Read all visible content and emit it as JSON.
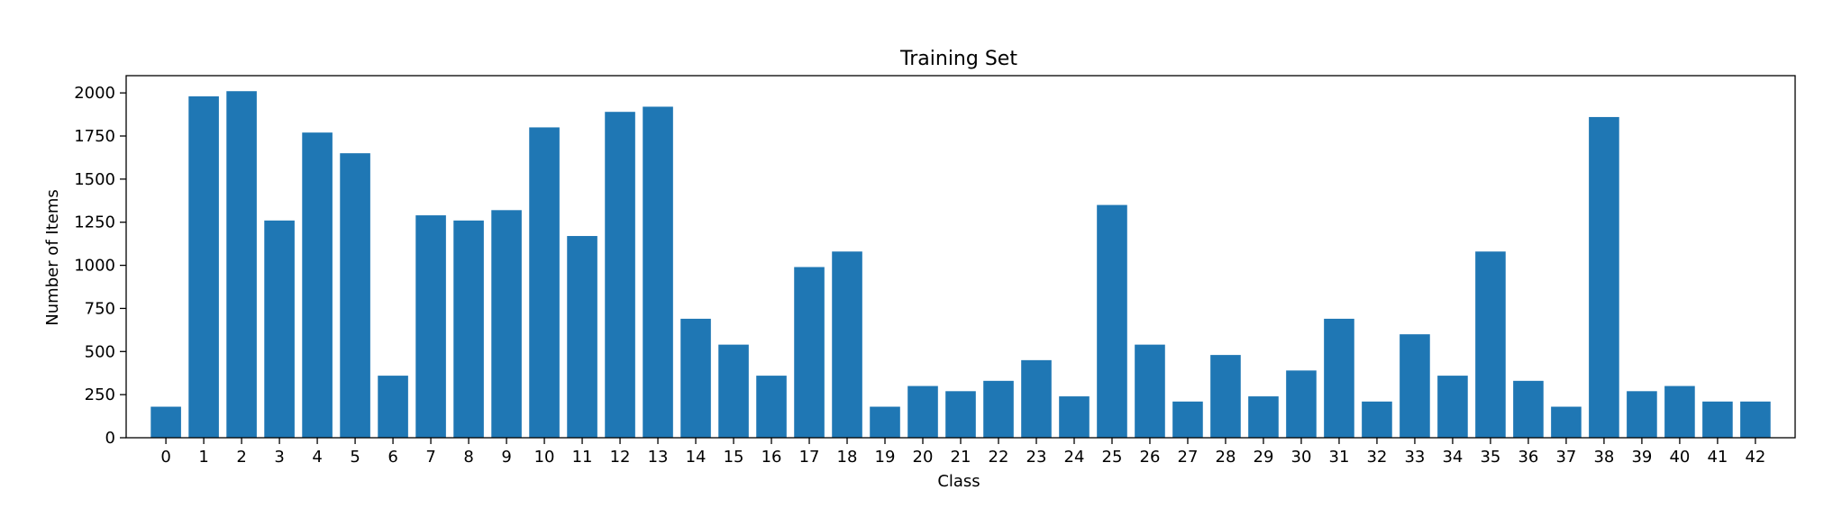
{
  "chart_data": {
    "type": "bar",
    "title": "Training Set",
    "xlabel": "Class",
    "ylabel": "Number of Items",
    "categories": [
      "0",
      "1",
      "2",
      "3",
      "4",
      "5",
      "6",
      "7",
      "8",
      "9",
      "10",
      "11",
      "12",
      "13",
      "14",
      "15",
      "16",
      "17",
      "18",
      "19",
      "20",
      "21",
      "22",
      "23",
      "24",
      "25",
      "26",
      "27",
      "28",
      "29",
      "30",
      "31",
      "32",
      "33",
      "34",
      "35",
      "36",
      "37",
      "38",
      "39",
      "40",
      "41",
      "42"
    ],
    "values": [
      180,
      1980,
      2010,
      1260,
      1770,
      1650,
      360,
      1290,
      1260,
      1320,
      1800,
      1170,
      1890,
      1920,
      690,
      540,
      360,
      990,
      1080,
      180,
      300,
      270,
      330,
      450,
      240,
      1350,
      540,
      210,
      480,
      240,
      390,
      690,
      210,
      600,
      360,
      1080,
      330,
      180,
      1860,
      270,
      300,
      210,
      210
    ],
    "ylim": [
      0,
      2100
    ],
    "yticks": [
      0,
      250,
      500,
      750,
      1000,
      1250,
      1500,
      1750,
      2000
    ],
    "bar_color": "#1f77b4",
    "grid": false,
    "legend": "none"
  }
}
